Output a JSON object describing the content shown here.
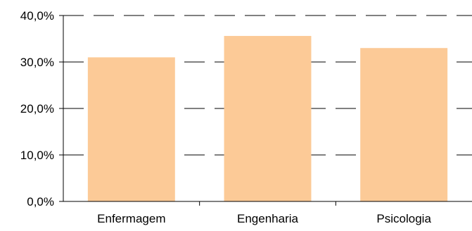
{
  "chart_data": {
    "type": "bar",
    "categories": [
      "Enfermagem",
      "Engenharia",
      "Psicologia"
    ],
    "values": [
      31.0,
      35.6,
      33.0
    ],
    "ylim": [
      0,
      40
    ],
    "yticks": [
      {
        "value": 0,
        "label": "0,0%"
      },
      {
        "value": 10,
        "label": "10,0%"
      },
      {
        "value": 20,
        "label": "20,0%"
      },
      {
        "value": 30,
        "label": "30,0%"
      },
      {
        "value": 40,
        "label": "40,0%"
      }
    ],
    "grid": true,
    "bar_color": "#FCCA97",
    "title": "",
    "xlabel": "",
    "ylabel": ""
  }
}
